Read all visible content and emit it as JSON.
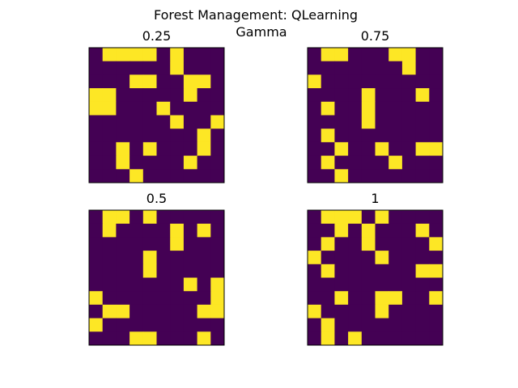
{
  "figure": {
    "title": "Forest Management: QLearning",
    "subtitle": "Gamma"
  },
  "chart_data": {
    "type": "heatmap",
    "title": "Forest Management: QLearning",
    "subtitle": "Gamma",
    "grid": false,
    "axes_ticks": false,
    "colormap": {
      "low": "#440154",
      "high": "#fde725"
    },
    "panels": [
      {
        "label": "0.25",
        "position": "top-left",
        "matrix": [
          [
            0,
            1,
            1,
            1,
            1,
            0,
            1,
            0,
            0,
            0
          ],
          [
            0,
            0,
            0,
            0,
            0,
            0,
            1,
            0,
            0,
            0
          ],
          [
            0,
            0,
            0,
            1,
            1,
            0,
            0,
            1,
            1,
            0
          ],
          [
            1,
            1,
            0,
            0,
            0,
            0,
            0,
            1,
            0,
            0
          ],
          [
            1,
            1,
            0,
            0,
            0,
            1,
            0,
            0,
            0,
            0
          ],
          [
            0,
            0,
            0,
            0,
            0,
            0,
            1,
            0,
            0,
            1
          ],
          [
            0,
            0,
            0,
            0,
            0,
            0,
            0,
            0,
            1,
            0
          ],
          [
            0,
            0,
            1,
            0,
            1,
            0,
            0,
            0,
            1,
            0
          ],
          [
            0,
            0,
            1,
            0,
            0,
            0,
            0,
            1,
            0,
            0
          ],
          [
            0,
            0,
            0,
            1,
            0,
            0,
            0,
            0,
            0,
            0
          ]
        ]
      },
      {
        "label": "0.75",
        "position": "top-right",
        "matrix": [
          [
            0,
            1,
            1,
            0,
            0,
            0,
            1,
            1,
            0,
            0
          ],
          [
            0,
            0,
            0,
            0,
            0,
            0,
            0,
            1,
            0,
            0
          ],
          [
            1,
            0,
            0,
            0,
            0,
            0,
            0,
            0,
            0,
            0
          ],
          [
            0,
            0,
            0,
            0,
            1,
            0,
            0,
            0,
            1,
            0
          ],
          [
            0,
            1,
            0,
            0,
            1,
            0,
            0,
            0,
            0,
            0
          ],
          [
            0,
            0,
            0,
            0,
            1,
            0,
            0,
            0,
            0,
            0
          ],
          [
            0,
            1,
            0,
            0,
            0,
            0,
            0,
            0,
            0,
            0
          ],
          [
            0,
            0,
            1,
            0,
            0,
            1,
            0,
            0,
            1,
            1
          ],
          [
            0,
            1,
            0,
            0,
            0,
            0,
            1,
            0,
            0,
            0
          ],
          [
            0,
            0,
            1,
            0,
            0,
            0,
            0,
            0,
            0,
            0
          ]
        ]
      },
      {
        "label": "0.5",
        "position": "bottom-left",
        "matrix": [
          [
            0,
            1,
            1,
            0,
            1,
            0,
            0,
            0,
            0,
            0
          ],
          [
            0,
            1,
            0,
            0,
            0,
            0,
            1,
            0,
            1,
            0
          ],
          [
            0,
            0,
            0,
            0,
            0,
            0,
            1,
            0,
            0,
            0
          ],
          [
            0,
            0,
            0,
            0,
            1,
            0,
            0,
            0,
            0,
            0
          ],
          [
            0,
            0,
            0,
            0,
            1,
            0,
            0,
            0,
            0,
            0
          ],
          [
            0,
            0,
            0,
            0,
            0,
            0,
            0,
            1,
            0,
            1
          ],
          [
            1,
            0,
            0,
            0,
            0,
            0,
            0,
            0,
            0,
            1
          ],
          [
            0,
            1,
            1,
            0,
            0,
            0,
            0,
            0,
            1,
            1
          ],
          [
            1,
            0,
            0,
            0,
            0,
            0,
            0,
            0,
            0,
            0
          ],
          [
            0,
            0,
            0,
            1,
            1,
            0,
            0,
            0,
            1,
            0
          ]
        ]
      },
      {
        "label": "1",
        "position": "bottom-right",
        "matrix": [
          [
            0,
            1,
            1,
            1,
            0,
            1,
            0,
            0,
            0,
            0
          ],
          [
            0,
            0,
            1,
            0,
            1,
            0,
            0,
            0,
            1,
            0
          ],
          [
            0,
            1,
            0,
            0,
            1,
            0,
            0,
            0,
            0,
            1
          ],
          [
            1,
            0,
            0,
            0,
            0,
            1,
            0,
            0,
            0,
            0
          ],
          [
            0,
            1,
            0,
            0,
            0,
            0,
            0,
            0,
            1,
            1
          ],
          [
            0,
            0,
            0,
            0,
            0,
            0,
            0,
            0,
            0,
            0
          ],
          [
            0,
            0,
            1,
            0,
            0,
            1,
            1,
            0,
            0,
            1
          ],
          [
            1,
            0,
            0,
            0,
            0,
            1,
            0,
            0,
            0,
            0
          ],
          [
            0,
            1,
            0,
            0,
            0,
            0,
            0,
            0,
            0,
            0
          ],
          [
            0,
            1,
            0,
            1,
            0,
            0,
            0,
            0,
            0,
            0
          ]
        ]
      }
    ]
  }
}
